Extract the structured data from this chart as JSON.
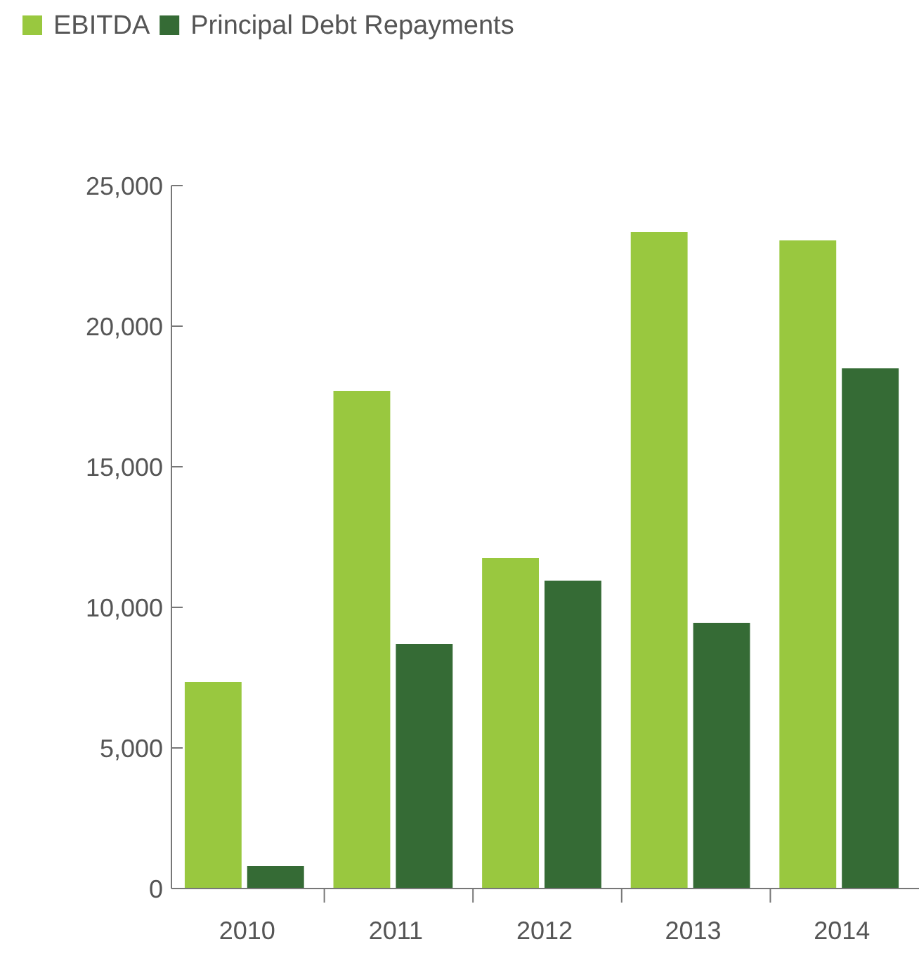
{
  "chart_data": {
    "type": "bar",
    "categories": [
      "2010",
      "2011",
      "2012",
      "2013",
      "2014"
    ],
    "series": [
      {
        "name": "EBITDA",
        "color": "#99c83f",
        "values": [
          7350,
          17700,
          11750,
          23350,
          23050
        ]
      },
      {
        "name": "Principal Debt Repayments",
        "color": "#356b35",
        "values": [
          800,
          8700,
          10950,
          9450,
          18500
        ]
      }
    ],
    "ylim": [
      0,
      25000
    ],
    "yticks": [
      {
        "value": 0,
        "label": "0"
      },
      {
        "value": 5000,
        "label": "5,000"
      },
      {
        "value": 10000,
        "label": "10,000"
      },
      {
        "value": 15000,
        "label": "15,000"
      },
      {
        "value": 20000,
        "label": "20,000"
      },
      {
        "value": 25000,
        "label": "25,000"
      }
    ],
    "grid": false,
    "legend": "top left"
  }
}
